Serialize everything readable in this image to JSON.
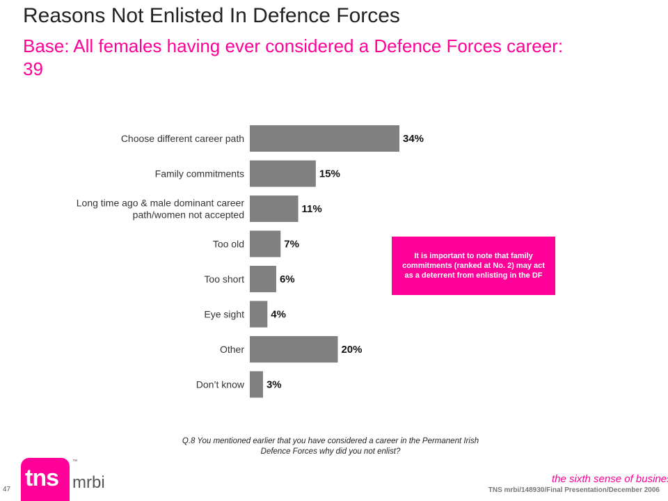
{
  "title": "Reasons Not Enlisted In Defence Forces",
  "subtitle": "Base:  All females having ever considered a Defence Forces career:  39",
  "callout": "It is important to note that family commitments (ranked at No. 2) may act as a deterrent from enlisting in the DF",
  "question": "Q.8  You mentioned earlier that you have considered a career in the Permanent Irish Defence Forces why did you not enlist?",
  "footer": {
    "page_number": "47",
    "reference": "TNS mrbi/148930/Final Presentation/December 2006",
    "tagline": "the sixth sense of business",
    "tagline_tm": "™",
    "logo_main": "tns",
    "logo_sub": "mrbi",
    "logo_tm": "™"
  },
  "colors": {
    "bar": "#808080",
    "accent": "#ff0099"
  },
  "chart_data": {
    "type": "bar",
    "orientation": "horizontal",
    "categories": [
      "Choose different career path",
      "Family commitments",
      "Long time ago & male dominant career path/women not accepted",
      "Too old",
      "Too short",
      "Eye sight",
      "Other",
      "Don’t know"
    ],
    "category_lines": [
      [
        "Choose different career path"
      ],
      [
        "Family commitments"
      ],
      [
        "Long time ago & male dominant career",
        "path/women not accepted"
      ],
      [
        "Too old"
      ],
      [
        "Too short"
      ],
      [
        "Eye sight"
      ],
      [
        "Other"
      ],
      [
        "Don’t know"
      ]
    ],
    "values": [
      34,
      15,
      11,
      7,
      6,
      4,
      20,
      3
    ],
    "value_labels": [
      "34%",
      "15%",
      "11%",
      "7%",
      "6%",
      "4%",
      "20%",
      "3%"
    ],
    "unit": "%",
    "xlim": [
      0,
      34
    ],
    "grid": false,
    "legend": "none"
  }
}
